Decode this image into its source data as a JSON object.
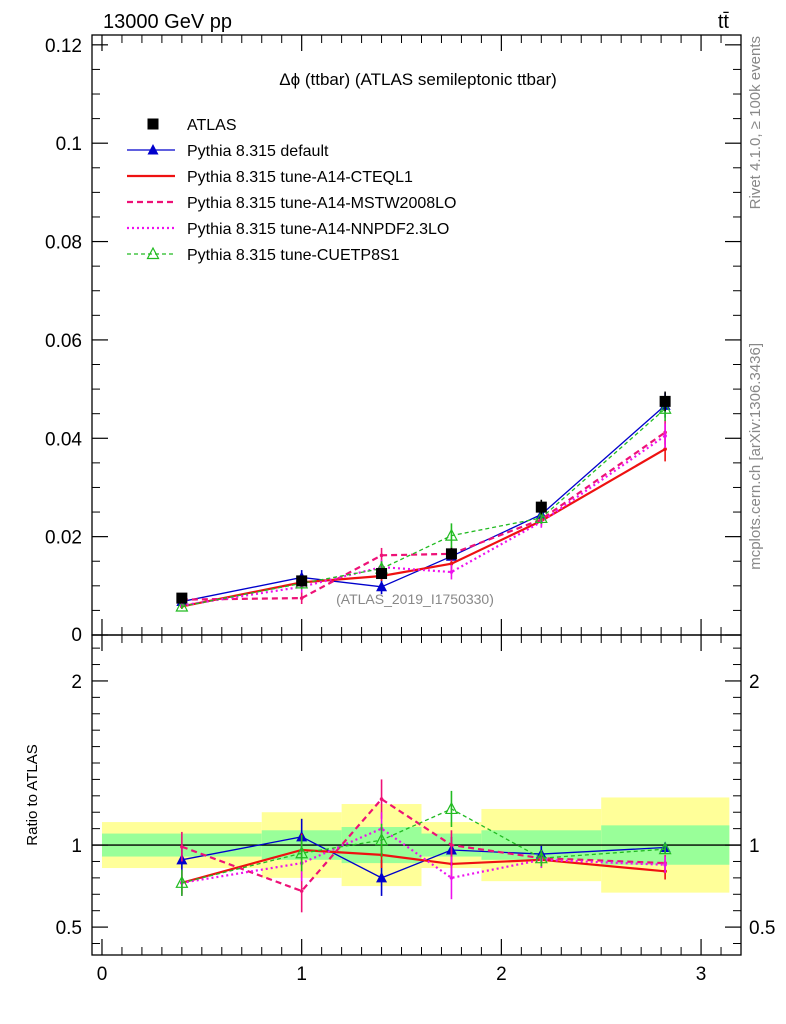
{
  "header": {
    "energy_label": "13000 GeV pp",
    "process_label": "tt̄"
  },
  "side_labels": {
    "rivet": "Rivet 4.1.0, ≥ 100k events",
    "mcplots": "mcplots.cern.ch [arXiv:1306.3436]"
  },
  "chart_data": {
    "type": "line",
    "title": "Δϕ (ttbar) (ATLAS semileptonic ttbar)",
    "analysis_label": "(ATLAS_2019_I1750330)",
    "xlabel": "",
    "ylabel": "",
    "ratio_ylabel": "Ratio to ATLAS",
    "xlim": [
      -0.05,
      3.2
    ],
    "ylim": [
      0,
      0.122
    ],
    "ratio_ylim": [
      0.33,
      2.28
    ],
    "x_ticks": [
      0,
      1,
      2,
      3
    ],
    "x_tick_labels": [
      "0",
      "1",
      "2",
      "3"
    ],
    "y_ticks": [
      0,
      0.02,
      0.04,
      0.06,
      0.08,
      0.1,
      0.12
    ],
    "y_tick_labels": [
      "0",
      "0.02",
      "0.04",
      "0.06",
      "0.08",
      "0.1",
      "0.12"
    ],
    "ratio_ticks": [
      0.5,
      1,
      2
    ],
    "ratio_tick_labels": [
      "0.5",
      "1",
      "2"
    ],
    "bin_edges": [
      0,
      0.8,
      1.2,
      1.6,
      1.9,
      2.5,
      3.1416
    ],
    "x": [
      0.4,
      1.0,
      1.4,
      1.75,
      2.2,
      2.82
    ],
    "ratio_band_inner": [
      [
        0.93,
        1.07
      ],
      [
        0.91,
        1.09
      ],
      [
        0.89,
        1.11
      ],
      [
        0.93,
        1.07
      ],
      [
        0.91,
        1.09
      ],
      [
        0.88,
        1.12
      ]
    ],
    "ratio_band_outer": [
      [
        0.86,
        1.14
      ],
      [
        0.8,
        1.2
      ],
      [
        0.75,
        1.25
      ],
      [
        0.86,
        1.14
      ],
      [
        0.78,
        1.22
      ],
      [
        0.71,
        1.29
      ]
    ],
    "series": [
      {
        "name": "ATLAS",
        "legend": "ATLAS",
        "kind": "data",
        "color": "#000000",
        "values": [
          0.0075,
          0.011,
          0.0125,
          0.0165,
          0.026,
          0.0475
        ],
        "errors": [
          0.0007,
          0.001,
          0.001,
          0.0012,
          0.0015,
          0.002
        ]
      },
      {
        "name": "default",
        "legend": "Pythia 8.315 default",
        "color": "#0000cc",
        "dash": "",
        "width": 1.3,
        "marker": "triangle-filled",
        "values": [
          0.0068,
          0.0117,
          0.0098,
          0.016,
          0.0245,
          0.0467
        ],
        "errors": [
          0.0005,
          0.0015,
          0.0015,
          0.0015,
          0.0012,
          0.0025
        ],
        "ratio": [
          0.91,
          1.05,
          0.8,
          0.97,
          0.945,
          0.985
        ],
        "ratio_errors": [
          0.07,
          0.11,
          0.11,
          0.08,
          0.05,
          0.03
        ]
      },
      {
        "name": "A14-CTEQL1",
        "legend": "Pythia 8.315 tune-A14-CTEQL1",
        "color": "#ee1111",
        "dash": "",
        "width": 2.2,
        "marker": "none",
        "values": [
          0.0058,
          0.0107,
          0.012,
          0.0145,
          0.0232,
          0.0378
        ],
        "errors": [
          0.0005,
          0.001,
          0.001,
          0.0015,
          0.0012,
          0.0025
        ],
        "ratio": [
          0.77,
          0.97,
          0.94,
          0.885,
          0.91,
          0.84
        ],
        "ratio_errors": [
          0.07,
          0.1,
          0.08,
          0.09,
          0.05,
          0.05
        ]
      },
      {
        "name": "A14-MSTW2008LO",
        "legend": "Pythia 8.315 tune-A14-MSTW2008LO",
        "color": "#ee1177",
        "dash": "6,4",
        "width": 2.2,
        "marker": "none",
        "values": [
          0.0072,
          0.0075,
          0.0162,
          0.0165,
          0.0235,
          0.0412
        ],
        "errors": [
          0.0005,
          0.0012,
          0.0015,
          0.0015,
          0.0012,
          0.0025
        ],
        "ratio": [
          0.99,
          0.72,
          1.28,
          1.0,
          0.92,
          0.89
        ],
        "ratio_errors": [
          0.09,
          0.13,
          0.12,
          0.09,
          0.05,
          0.05
        ]
      },
      {
        "name": "A14-NNPDF2.3LO",
        "legend": "Pythia 8.315 tune-A14-NNPDF2.3LO",
        "color": "#ee11ee",
        "dash": "2,3",
        "width": 2.2,
        "marker": "none",
        "values": [
          0.006,
          0.0098,
          0.0138,
          0.0128,
          0.023,
          0.0405
        ],
        "errors": [
          0.0005,
          0.0012,
          0.0015,
          0.0015,
          0.0012,
          0.0025
        ],
        "ratio": [
          0.77,
          0.89,
          1.1,
          0.8,
          0.91,
          0.88
        ],
        "ratio_errors": [
          0.08,
          0.11,
          0.1,
          0.13,
          0.05,
          0.05
        ]
      },
      {
        "name": "CUETP8S1",
        "legend": "Pythia 8.315 tune-CUETP8S1",
        "color": "#22bb22",
        "dash": "4,3",
        "width": 1.3,
        "marker": "triangle-open",
        "values": [
          0.0058,
          0.0105,
          0.0135,
          0.0202,
          0.0238,
          0.046
        ],
        "errors": [
          0.0005,
          0.0012,
          0.0015,
          0.0025,
          0.0012,
          0.0025
        ],
        "ratio": [
          0.77,
          0.95,
          1.03,
          1.22,
          0.92,
          0.975
        ],
        "ratio_errors": [
          0.08,
          0.11,
          0.1,
          0.11,
          0.05,
          0.03
        ]
      }
    ]
  }
}
